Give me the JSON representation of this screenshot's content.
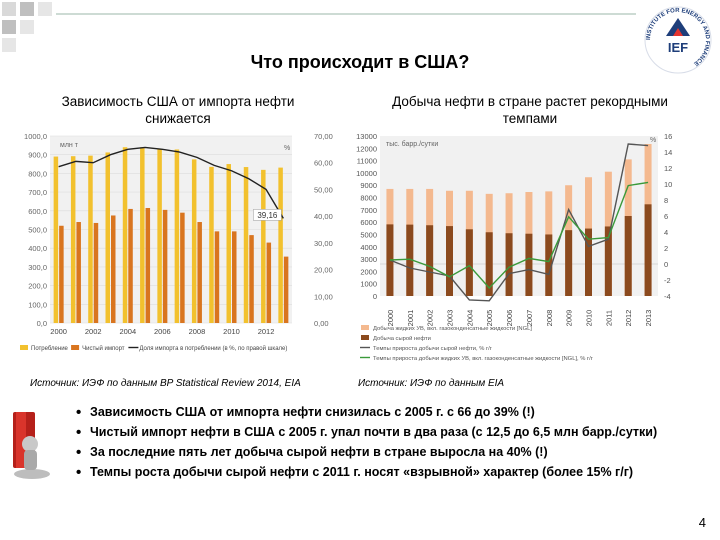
{
  "slide": {
    "title": "Что происходит в США?",
    "page_number": "4",
    "logo_text": "IEF",
    "logo_ring_text": "INSTITUTE FOR ENERGY AND FINANCE"
  },
  "left_panel": {
    "subtitle": "Зависимость США от импорта нефти снижается",
    "source": "Источник: ИЭФ по данным BP Statistical Review 2014, EIA"
  },
  "right_panel": {
    "subtitle": "Добыча нефти в стране растет рекордными темпами",
    "source": "Источник: ИЭФ по данным EIA"
  },
  "bullets": [
    "Зависимость США от импорта нефти снизилась  с 2005 г. с 66 до 39% (!)",
    "Чистый импорт нефти в США с 2005 г. упал почти в два раза (с 12,5 до 6,5 млн барр./сутки)",
    "За последние пять лет добыча сырой нефти в стране выросла на 40% (!)",
    "Темпы роста добычи сырой нефти с 2011 г. носят «взрывной» характер (более 15% г/г)"
  ],
  "colors": {
    "consumption": "#f2c12e",
    "net_import": "#d9751f",
    "share_line": "#222222",
    "total_liquids": "#f4b98f",
    "crude": "#8b4a1e",
    "crude_growth": "#555555",
    "liquids_growth": "#3a9a3a",
    "chart_bg": "#f1f1f1"
  },
  "chart_data": [
    {
      "type": "bar",
      "left_unit": "млн т",
      "right_unit": "%",
      "x_tick_labels": [
        "2000",
        "2002",
        "2004",
        "2006",
        "2008",
        "2010",
        "2012"
      ],
      "left_ticks": [
        "0,0",
        "100,0",
        "200,0",
        "300,0",
        "400,0",
        "500,0",
        "600,0",
        "700,0",
        "800,0",
        "900,0",
        "1000,0"
      ],
      "right_ticks": [
        "0,00",
        "10,00",
        "20,00",
        "30,00",
        "40,00",
        "50,00",
        "60,00",
        "70,00"
      ],
      "ylim_left": [
        0,
        1000
      ],
      "ylim_right": [
        0,
        70
      ],
      "categories": [
        2000,
        2001,
        2002,
        2003,
        2004,
        2005,
        2006,
        2007,
        2008,
        2009,
        2010,
        2011,
        2012,
        2013
      ],
      "series": [
        {
          "name": "Потребление",
          "axis": "left",
          "values": [
            890,
            892,
            895,
            912,
            940,
            940,
            930,
            928,
            875,
            835,
            850,
            834,
            819,
            831
          ]
        },
        {
          "name": "Чистый импорт",
          "axis": "left",
          "values": [
            520,
            540,
            535,
            575,
            610,
            615,
            605,
            590,
            540,
            490,
            490,
            470,
            430,
            355
          ]
        },
        {
          "name": "Доля импорта в потреблении (в %, по правой шкале)",
          "axis": "right",
          "values": [
            58.5,
            60.5,
            60,
            63,
            65,
            65.7,
            65,
            64,
            62,
            59,
            57,
            54,
            50,
            39.16
          ]
        }
      ],
      "annotations": [
        "39,16"
      ],
      "legend_position": "bottom"
    },
    {
      "type": "bar",
      "left_unit": "тыс. барр./сутки",
      "right_unit": "%",
      "x_tick_labels": [
        "2000",
        "2001",
        "2002",
        "2003",
        "2004",
        "2005",
        "2006",
        "2007",
        "2008",
        "2009",
        "2010",
        "2011",
        "2012",
        "2013"
      ],
      "left_ticks": [
        "0",
        "1000",
        "2000",
        "3000",
        "4000",
        "5000",
        "6000",
        "7000",
        "8000",
        "9000",
        "10000",
        "11000",
        "12000",
        "13000"
      ],
      "right_ticks": [
        "-4",
        "-2",
        "0",
        "2",
        "4",
        "6",
        "8",
        "10",
        "12",
        "14",
        "16"
      ],
      "ylim_left": [
        0,
        13000
      ],
      "ylim_right": [
        -4,
        16
      ],
      "categories": [
        2000,
        2001,
        2002,
        2003,
        2004,
        2005,
        2006,
        2007,
        2008,
        2009,
        2010,
        2011,
        2012,
        2013
      ],
      "series": [
        {
          "name": "Добыча жидких УВ, вкл. газоконденсатные жидкости [NGL]",
          "axis": "left",
          "values": [
            8700,
            8700,
            8700,
            8550,
            8550,
            8300,
            8350,
            8450,
            8500,
            9000,
            9650,
            10100,
            11100,
            12350
          ]
        },
        {
          "name": "Добыча сырой нефти",
          "axis": "left",
          "values": [
            5820,
            5800,
            5750,
            5680,
            5420,
            5180,
            5100,
            5060,
            5000,
            5350,
            5480,
            5650,
            6500,
            7450
          ]
        },
        {
          "name": "Темпы прироста добычи сырой нефти, % г/г",
          "axis": "right",
          "values": [
            0.5,
            -0.5,
            -1,
            -1.5,
            -4.5,
            -4.6,
            -1.2,
            -0.7,
            -1.3,
            6.8,
            2.2,
            3.1,
            15,
            14.8
          ]
        },
        {
          "name": "Темпы прироста добычи жидких УВ, вкл. газоконденсатные жидкости [NGL], % г/г",
          "axis": "right",
          "values": [
            0.5,
            0.6,
            -0.3,
            -1.6,
            -0.2,
            -3,
            -0.4,
            0.7,
            0.3,
            5.9,
            3.1,
            3.3,
            9.8,
            10.2
          ]
        }
      ],
      "annotations": [
        "%"
      ],
      "legend_position": "bottom"
    }
  ]
}
